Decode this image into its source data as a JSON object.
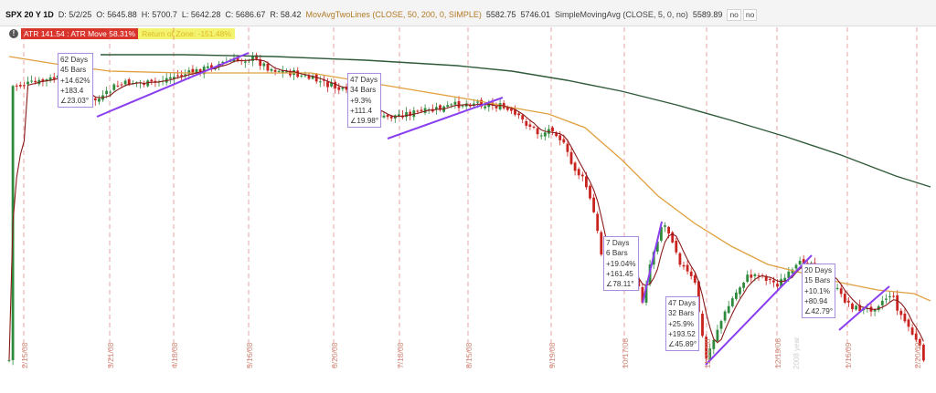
{
  "header": {
    "symbol": "SPX 20 Y 1D",
    "date": "D: 5/2/25",
    "open": "O: 5645.88",
    "high": "H: 5700.7",
    "low": "L: 5642.28",
    "close": "C: 5686.67",
    "range": "R: 58.42",
    "ma_two_lines_name": "MovAvgTwoLines (CLOSE, 50, 200, 0, SIMPLE)",
    "ma_two_lines_val1": "5582.75",
    "ma_two_lines_val2": "5746.01",
    "sma_name": "SimpleMovingAvg (CLOSE, 5, 0, no)",
    "sma_val": "5589.89",
    "sma_flag1": "no",
    "sma_flag2": "no"
  },
  "atr": {
    "info_icon": "info-icon",
    "label": "ATR 141.54 : ATR Move 58.31%",
    "secondary": "Return of Zone: -151.48%"
  },
  "annotations": [
    {
      "lines": [
        "62 Days",
        "45 Bars",
        "+14.62%",
        "+183.4",
        "∠23.03°"
      ]
    },
    {
      "lines": [
        "47 Days",
        "34 Bars",
        "+9.3%",
        "+111.4",
        "∠19.98°"
      ]
    },
    {
      "lines": [
        "7 Days",
        "6 Bars",
        "+19.04%",
        "+161.45",
        "∠78.11°"
      ]
    },
    {
      "lines": [
        "47 Days",
        "32 Bars",
        "+25.9%",
        "+193.52",
        "∠45.89°"
      ]
    },
    {
      "lines": [
        "20 Days",
        "15 Bars",
        "+10.1%",
        "+80.94",
        "∠42.79°"
      ]
    }
  ],
  "watermark": "2008 year",
  "colors": {
    "up_candle": "#2e8b3e",
    "down_candle": "#c8231f",
    "ma50": "#e0a040",
    "ma200": "#2f5a3a",
    "sma5": "#8b1a1a",
    "trendline": "#8a3ff0",
    "date_line": "#d96b6b"
  },
  "chart_data": {
    "type": "candlestick",
    "x_axis_date_labels": [
      "2/15/08",
      "3/21/08",
      "4/18/08",
      "5/16/08",
      "6/20/08",
      "7/18/08",
      "8/15/08",
      "9/19/08",
      "10/17/08",
      "11/21/08",
      "12/19/08",
      "1/16/09",
      "2/20/09"
    ],
    "series": [
      {
        "name": "MovAvgTwoLines 50"
      },
      {
        "name": "MovAvgTwoLines 200"
      },
      {
        "name": "SimpleMovingAvg 5"
      }
    ]
  }
}
